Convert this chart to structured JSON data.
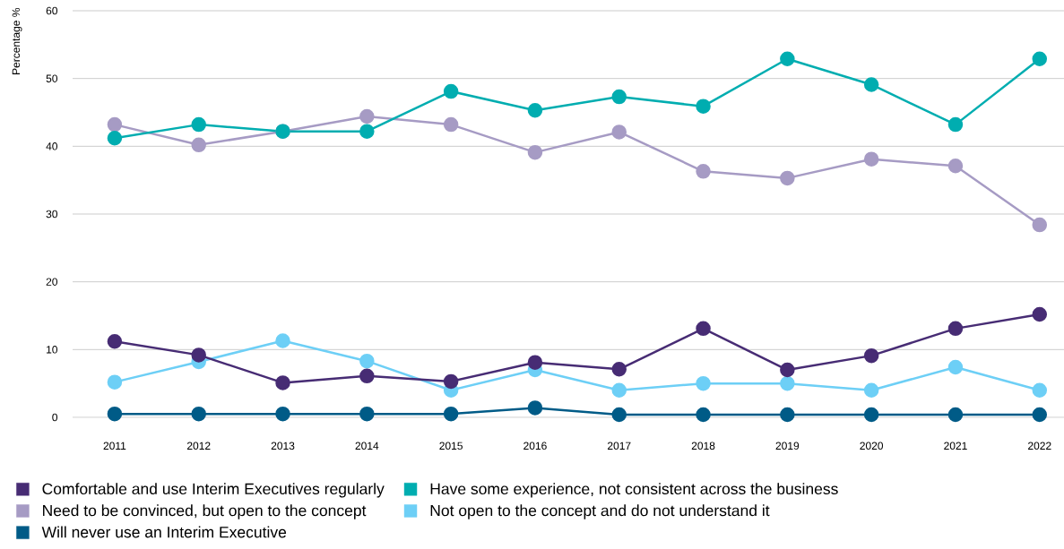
{
  "chart_data": {
    "type": "line",
    "ylabel": "Percentage %",
    "categories": [
      "2011",
      "2012",
      "2013",
      "2014",
      "2015",
      "2016",
      "2017",
      "2018",
      "2019",
      "2020",
      "2021",
      "2022"
    ],
    "series": [
      {
        "name": "Comfortable and use Interim Executives regularly",
        "color": "#472c74",
        "values": [
          11.2,
          9.2,
          5.1,
          6.1,
          5.3,
          8.1,
          7.1,
          13.1,
          7.0,
          9.1,
          13.1,
          15.2
        ]
      },
      {
        "name": "Have some experience, not consistent across the business",
        "color": "#00adb0",
        "values": [
          41.2,
          43.2,
          42.2,
          42.2,
          48.1,
          45.3,
          47.3,
          45.9,
          52.9,
          49.1,
          43.2,
          52.9
        ]
      },
      {
        "name": "Need to be convinced, but open to the concept",
        "color": "#a69bc4",
        "values": [
          43.2,
          40.2,
          42.2,
          44.4,
          43.2,
          39.1,
          42.1,
          36.3,
          35.3,
          38.1,
          37.1,
          28.4
        ]
      },
      {
        "name": "Not open to the concept and do not understand it",
        "color": "#6dcff6",
        "values": [
          5.2,
          8.2,
          11.3,
          8.3,
          4.0,
          7.0,
          4.0,
          5.0,
          5.0,
          4.0,
          7.4,
          4.0
        ]
      },
      {
        "name": "Will never use an Interim Executive",
        "color": "#005b87",
        "values": [
          0.5,
          0.5,
          0.5,
          0.5,
          0.5,
          1.4,
          0.4,
          0.4,
          0.4,
          0.4,
          0.4,
          0.4
        ]
      }
    ],
    "ylim": [
      0,
      60
    ],
    "yticks": [
      0,
      10,
      20,
      30,
      40,
      50,
      60
    ],
    "grid": "y",
    "legend": "bottom",
    "marker": "circle",
    "line_style": "solid"
  }
}
